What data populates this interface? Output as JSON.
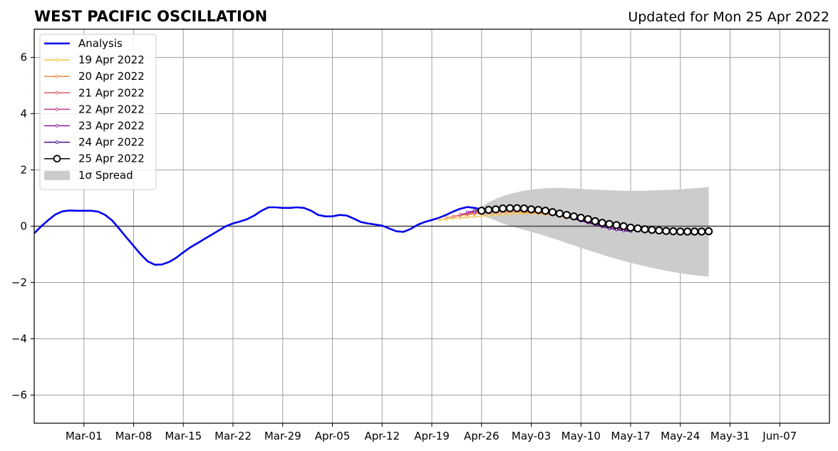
{
  "chart_data": {
    "type": "line",
    "title": "WEST PACIFIC OSCILLATION",
    "subtitle": "Updated for Mon 25 Apr 2022",
    "xlabel": "",
    "ylabel": "",
    "xlim": [
      "2022-02-22",
      "2022-06-14"
    ],
    "ylim": [
      -7,
      7
    ],
    "grid": true,
    "legend_position": "top-left",
    "x_ticks": [
      "2022-03-01",
      "2022-03-08",
      "2022-03-15",
      "2022-03-22",
      "2022-03-29",
      "2022-04-05",
      "2022-04-12",
      "2022-04-19",
      "2022-04-26",
      "2022-05-03",
      "2022-05-10",
      "2022-05-17",
      "2022-05-24",
      "2022-05-31",
      "2022-06-07"
    ],
    "x_tick_labels": [
      "Mar-01",
      "Mar-08",
      "Mar-15",
      "Mar-22",
      "Mar-29",
      "Apr-05",
      "Apr-12",
      "Apr-19",
      "Apr-26",
      "May-03",
      "May-10",
      "May-17",
      "May-24",
      "May-31",
      "Jun-07"
    ],
    "y_ticks": [
      -6,
      -4,
      -2,
      0,
      2,
      4,
      6
    ],
    "y_tick_labels": [
      "−6",
      "−4",
      "−2",
      "0",
      "2",
      "4",
      "6"
    ],
    "legend": [
      "Analysis",
      "19 Apr 2022",
      "20 Apr 2022",
      "21 Apr 2022",
      "22 Apr 2022",
      "23 Apr 2022",
      "24 Apr 2022",
      "25 Apr 2022",
      "1σ Spread"
    ],
    "series": [
      {
        "name": "Analysis",
        "color": "#0000ee",
        "start": "2022-02-22",
        "values": [
          -0.25,
          0.0,
          0.22,
          0.42,
          0.53,
          0.56,
          0.55,
          0.55,
          0.55,
          0.52,
          0.4,
          0.2,
          -0.1,
          -0.4,
          -0.7,
          -1.0,
          -1.25,
          -1.37,
          -1.36,
          -1.27,
          -1.12,
          -0.93,
          -0.75,
          -0.6,
          -0.45,
          -0.3,
          -0.15,
          0.0,
          0.1,
          0.17,
          0.25,
          0.38,
          0.55,
          0.67,
          0.67,
          0.65,
          0.65,
          0.67,
          0.65,
          0.55,
          0.4,
          0.35,
          0.35,
          0.4,
          0.38,
          0.27,
          0.15,
          0.1,
          0.06,
          0.02,
          -0.08,
          -0.18,
          -0.2,
          -0.1,
          0.05,
          0.15,
          0.22,
          0.3,
          0.4,
          0.52,
          0.62,
          0.68,
          0.65,
          0.6
        ]
      },
      {
        "name": "19 Apr 2022",
        "color": "#f0c040",
        "start": "2022-04-20",
        "values": [
          0.22,
          0.25,
          0.28,
          0.3,
          0.32,
          0.34,
          0.36,
          0.38,
          0.4,
          0.42,
          0.44,
          0.45,
          0.46,
          0.46,
          0.45,
          0.43,
          0.4,
          0.36,
          0.32,
          0.28,
          0.24,
          0.2,
          0.15,
          0.1,
          0.05,
          0.0,
          -0.04,
          -0.08,
          -0.11,
          -0.14,
          -0.16,
          -0.17
        ]
      },
      {
        "name": "20 Apr 2022",
        "color": "#f58a3c",
        "start": "2022-04-21",
        "values": [
          0.3,
          0.34,
          0.38,
          0.41,
          0.44,
          0.46,
          0.47,
          0.48,
          0.5,
          0.51,
          0.51,
          0.5,
          0.49,
          0.47,
          0.44,
          0.4,
          0.36,
          0.31,
          0.26,
          0.21,
          0.16,
          0.1,
          0.05,
          0.0,
          -0.04,
          -0.08,
          -0.11,
          -0.13,
          -0.15,
          -0.16
        ]
      },
      {
        "name": "21 Apr 2022",
        "color": "#e05a6a",
        "start": "2022-04-22",
        "values": [
          0.35,
          0.4,
          0.44,
          0.47,
          0.49,
          0.51,
          0.53,
          0.54,
          0.55,
          0.55,
          0.54,
          0.52,
          0.5,
          0.47,
          0.43,
          0.38,
          0.33,
          0.28,
          0.22,
          0.16,
          0.1,
          0.05,
          0.0,
          -0.05,
          -0.09,
          -0.12,
          -0.14,
          -0.15
        ]
      },
      {
        "name": "22 Apr 2022",
        "color": "#c0388a",
        "start": "2022-04-23",
        "values": [
          0.42,
          0.47,
          0.51,
          0.54,
          0.56,
          0.58,
          0.6,
          0.6,
          0.6,
          0.59,
          0.57,
          0.54,
          0.5,
          0.46,
          0.41,
          0.35,
          0.29,
          0.23,
          0.17,
          0.1,
          0.04,
          -0.02,
          -0.07,
          -0.11,
          -0.14,
          -0.16
        ]
      },
      {
        "name": "23 Apr 2022",
        "color": "#8a1ea0",
        "start": "2022-04-24",
        "values": [
          0.5,
          0.55,
          0.58,
          0.61,
          0.63,
          0.64,
          0.64,
          0.63,
          0.61,
          0.58,
          0.54,
          0.5,
          0.45,
          0.39,
          0.33,
          0.26,
          0.19,
          0.12,
          0.05,
          -0.02,
          -0.08,
          -0.12,
          -0.15,
          -0.17
        ]
      },
      {
        "name": "24 Apr 2022",
        "color": "#4a0c8c",
        "start": "2022-04-25",
        "values": [
          0.55,
          0.6,
          0.63,
          0.65,
          0.66,
          0.66,
          0.65,
          0.63,
          0.6,
          0.56,
          0.51,
          0.46,
          0.4,
          0.34,
          0.27,
          0.2,
          0.13,
          0.06,
          -0.01,
          -0.07,
          -0.12,
          -0.16,
          -0.18
        ]
      },
      {
        "name": "25 Apr 2022",
        "color": "#000000",
        "marker": "open-circle",
        "start": "2022-04-26",
        "values": [
          0.55,
          0.58,
          0.6,
          0.63,
          0.64,
          0.64,
          0.63,
          0.6,
          0.58,
          0.55,
          0.5,
          0.45,
          0.4,
          0.35,
          0.3,
          0.25,
          0.18,
          0.12,
          0.08,
          0.04,
          0.0,
          -0.05,
          -0.08,
          -0.11,
          -0.13,
          -0.15,
          -0.17,
          -0.18,
          -0.19,
          -0.19,
          -0.19,
          -0.19,
          -0.18
        ]
      }
    ],
    "spread": {
      "name": "1σ Spread",
      "color": "#cccccc",
      "start": "2022-04-26",
      "upper": [
        0.7,
        0.85,
        0.97,
        1.07,
        1.15,
        1.21,
        1.26,
        1.3,
        1.33,
        1.35,
        1.36,
        1.36,
        1.35,
        1.34,
        1.33,
        1.31,
        1.3,
        1.29,
        1.28,
        1.27,
        1.26,
        1.26,
        1.26,
        1.26,
        1.27,
        1.28,
        1.29,
        1.3,
        1.31,
        1.33,
        1.35,
        1.37,
        1.4
      ],
      "lower": [
        0.4,
        0.3,
        0.2,
        0.1,
        0.02,
        -0.06,
        -0.13,
        -0.2,
        -0.27,
        -0.35,
        -0.43,
        -0.51,
        -0.6,
        -0.68,
        -0.77,
        -0.85,
        -0.93,
        -1.01,
        -1.09,
        -1.16,
        -1.23,
        -1.3,
        -1.36,
        -1.42,
        -1.48,
        -1.53,
        -1.58,
        -1.63,
        -1.67,
        -1.71,
        -1.74,
        -1.77,
        -1.79
      ]
    }
  }
}
